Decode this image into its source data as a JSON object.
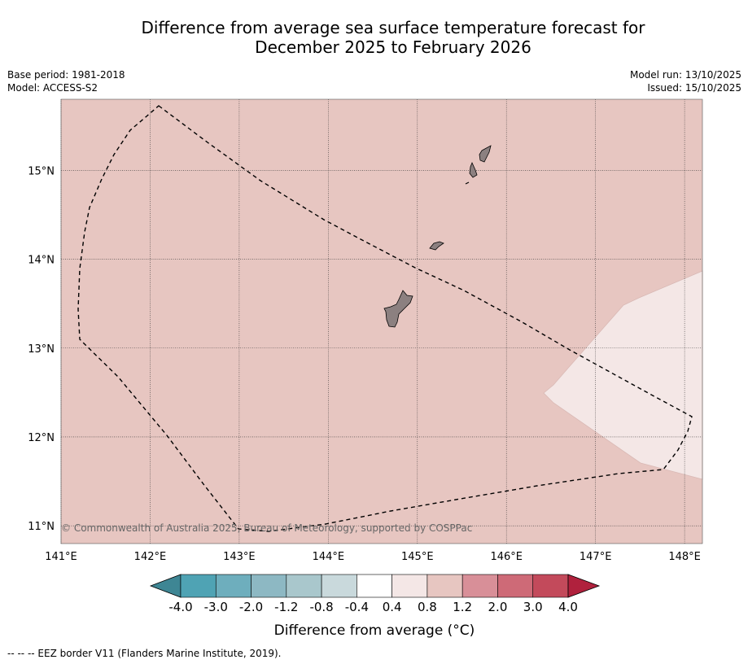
{
  "title": {
    "line1": "Difference from average sea surface temperature forecast for",
    "line2": "December 2025 to February 2026"
  },
  "meta_left": {
    "base_period": "Base period: 1981-2018",
    "model": "Model: ACCESS-S2"
  },
  "meta_right": {
    "model_run": "Model run: 13/10/2025",
    "issued": "Issued: 15/10/2025"
  },
  "map": {
    "lon_range": [
      141.0,
      148.2
    ],
    "lat_range": [
      10.8,
      15.8
    ],
    "lon_ticks": [
      141,
      142,
      143,
      144,
      145,
      146,
      147,
      148
    ],
    "lat_ticks": [
      11,
      12,
      13,
      14,
      15
    ],
    "lon_tick_labels": [
      "141°E",
      "142°E",
      "143°E",
      "144°E",
      "145°E",
      "146°E",
      "147°E",
      "148°E"
    ],
    "lat_tick_labels": [
      "11°N",
      "12°N",
      "13°N",
      "14°N",
      "15°N"
    ],
    "background_color": "#e7c6c1",
    "warm_patch_color": "#f4e7e6",
    "land_color": "#8c8080",
    "copyright": "© Commonwealth of Australia 2025, Bureau of Meteorology, supported by COSPPac"
  },
  "colorbar": {
    "tick_labels": [
      "-4.0",
      "-3.0",
      "-2.0",
      "-1.2",
      "-0.8",
      "-0.4",
      "0.4",
      "0.8",
      "1.2",
      "2.0",
      "3.0",
      "4.0"
    ],
    "colors": [
      "#4fa3b4",
      "#6eaebd",
      "#8db8c3",
      "#a9c7cc",
      "#c9d9dc",
      "#ffffff",
      "#f4e7e6",
      "#e7c6c1",
      "#d88f98",
      "#ce6a77",
      "#c34a5b"
    ],
    "under_color": "#3e8694",
    "over_color": "#b0213d",
    "label": "Difference from average (°C)"
  },
  "footnote": "--  --  -- EEZ border V11 (Flanders Marine Institute, 2019)."
}
